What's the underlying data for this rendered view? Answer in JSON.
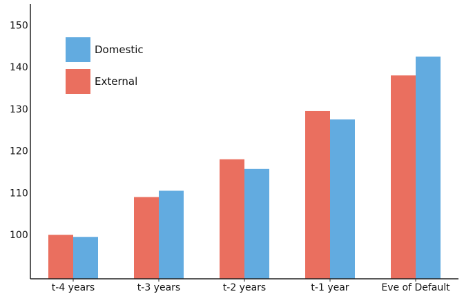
{
  "chart_data": {
    "type": "bar",
    "title": "",
    "xlabel": "",
    "ylabel": "",
    "categories": [
      "t-4 years",
      "t-3 years",
      "t-2 years",
      "t-1 year",
      "Eve of Default"
    ],
    "series": [
      {
        "name": "External",
        "color": "#ea6f5f",
        "values": [
          100,
          109,
          118,
          129.5,
          138
        ]
      },
      {
        "name": "Domestic",
        "color": "#62abe0",
        "values": [
          99.5,
          110.5,
          115.7,
          127.5,
          142.5
        ]
      }
    ],
    "legend_order": [
      "Domestic",
      "External"
    ],
    "legend_position": "top-left",
    "yticks": [
      100,
      110,
      120,
      130,
      140,
      150
    ],
    "ylim": [
      89.5,
      155
    ],
    "grid": false
  }
}
